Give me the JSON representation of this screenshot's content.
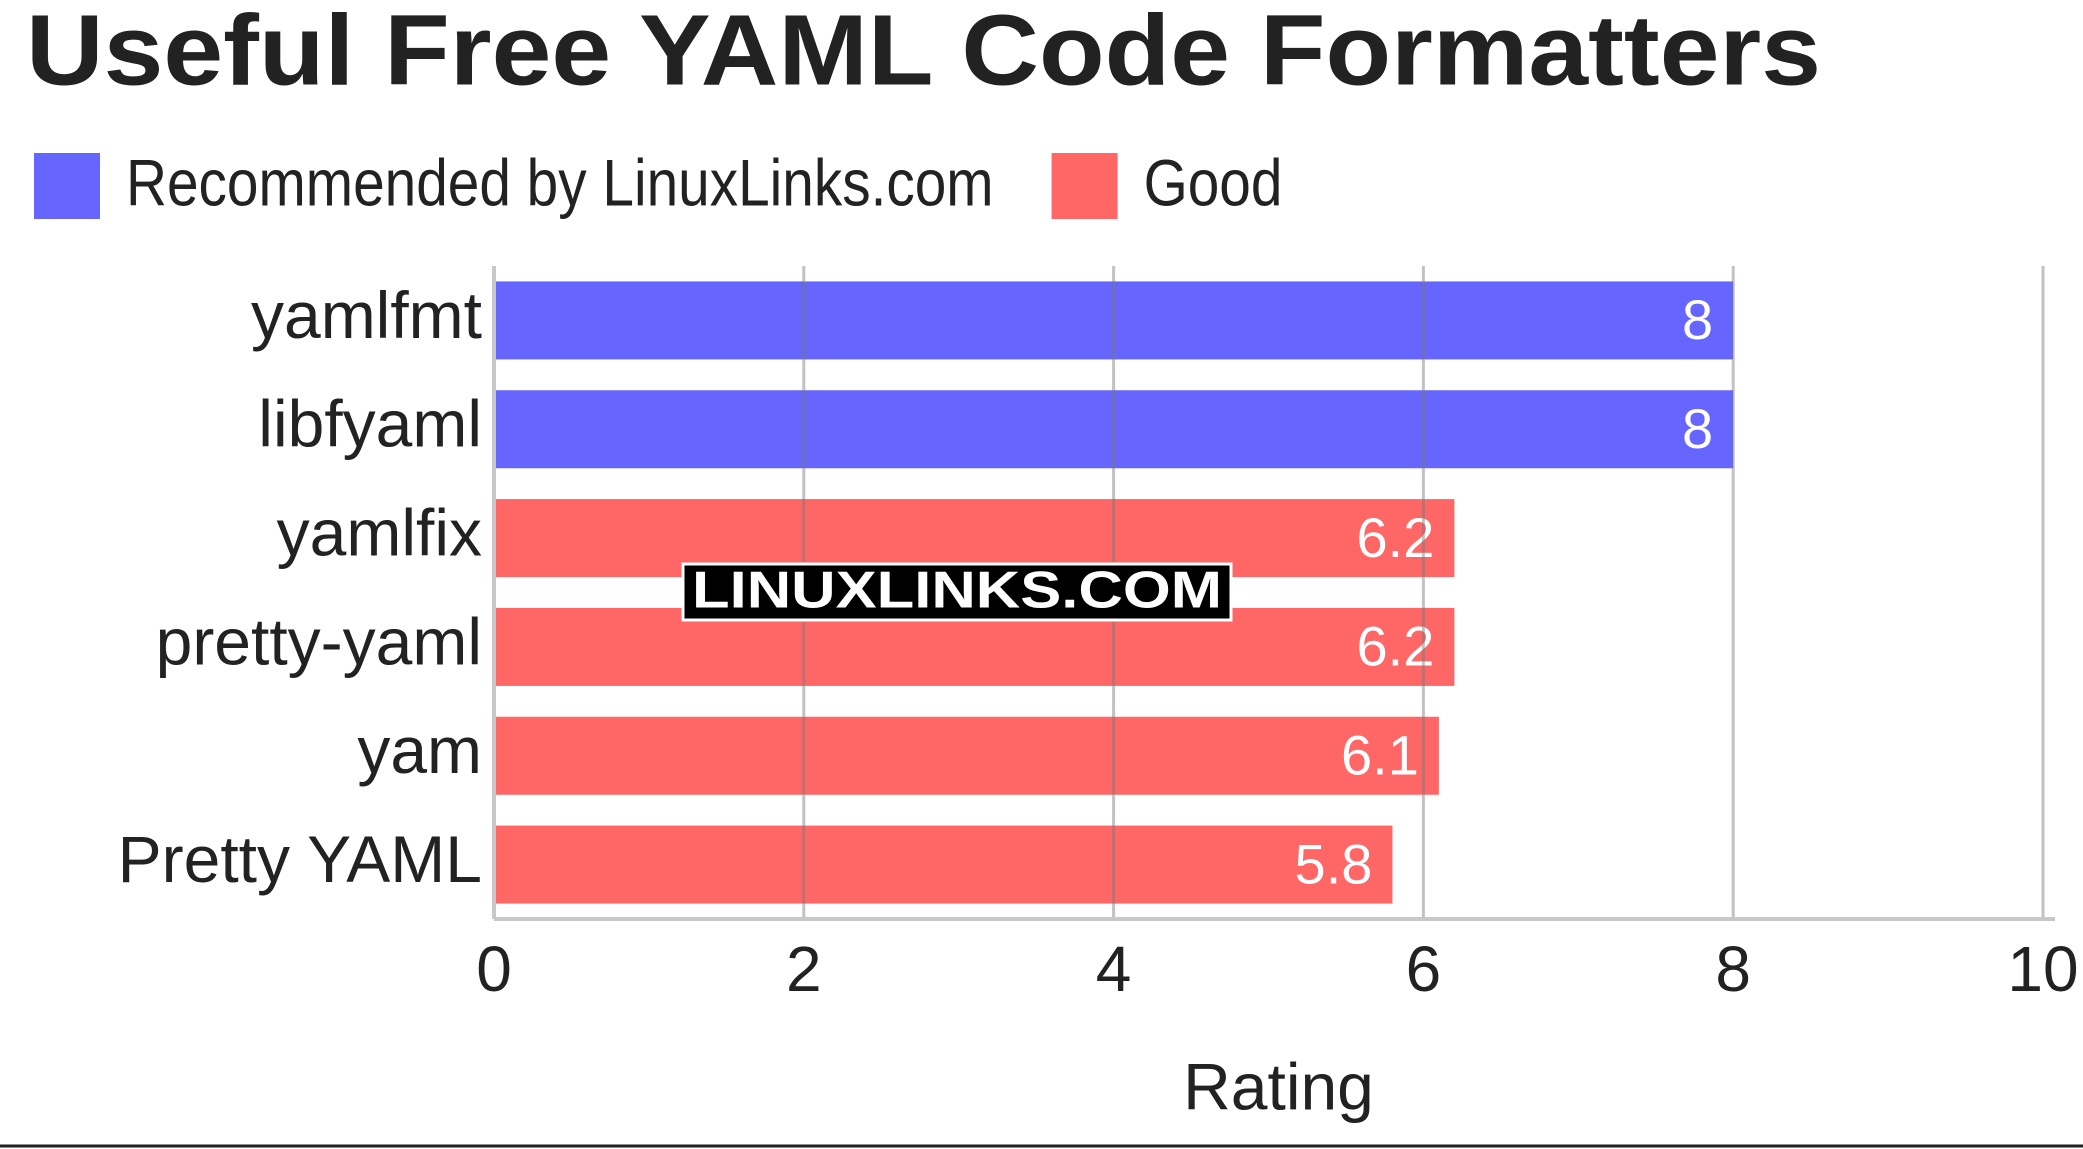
{
  "chart_data": {
    "type": "bar",
    "orientation": "horizontal",
    "title": "Useful Free YAML Code Formatters",
    "categories": [
      "yamlfmt",
      "libfyaml",
      "yamlfix",
      "pretty-yaml",
      "yam",
      "Pretty YAML"
    ],
    "series": [
      {
        "name": "Recommended by LinuxLinks.com",
        "color": "#6666ff",
        "values": [
          8,
          8,
          null,
          null,
          null,
          null
        ]
      },
      {
        "name": "Good",
        "color": "#ff6666",
        "values": [
          null,
          null,
          6.2,
          6.2,
          6.1,
          5.8
        ]
      }
    ],
    "xlim": [
      0,
      10
    ],
    "xticks": [
      0,
      2,
      4,
      6,
      8,
      10
    ],
    "xlabel": "Rating",
    "grid": true,
    "legend": "top-left",
    "watermark": "LINUXLINKS.COM"
  }
}
